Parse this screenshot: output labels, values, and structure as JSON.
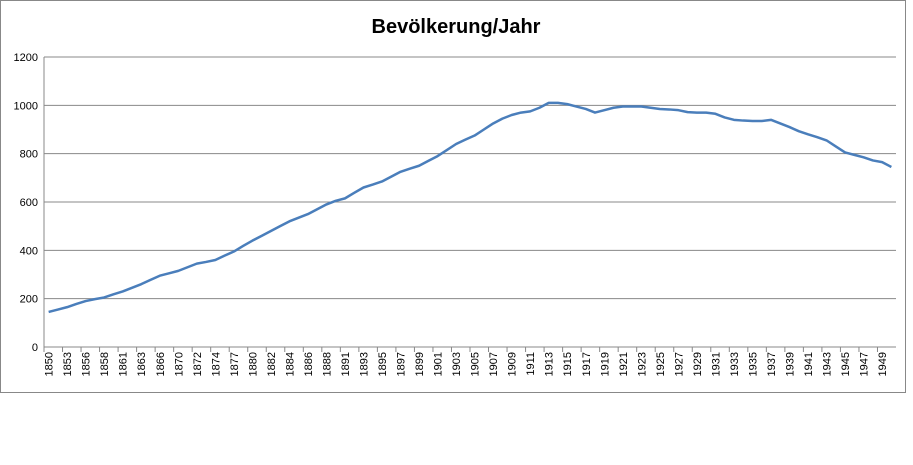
{
  "chart_data": {
    "type": "line",
    "title": "Bevölkerung/Jahr",
    "categories": [
      "1850",
      null,
      "1853",
      null,
      "1856",
      null,
      "1858",
      null,
      "1861",
      null,
      "1863",
      null,
      "1866",
      null,
      "1870",
      null,
      "1872",
      null,
      "1874",
      null,
      "1877",
      null,
      "1880",
      null,
      "1882",
      null,
      "1884",
      null,
      "1886",
      null,
      "1888",
      null,
      "1891",
      null,
      "1893",
      null,
      "1895",
      null,
      "1897",
      null,
      "1899",
      null,
      "1901",
      null,
      "1903",
      null,
      "1905",
      null,
      "1907",
      null,
      "1909",
      null,
      "1911",
      null,
      "1913",
      null,
      "1915",
      null,
      "1917",
      null,
      "1919",
      null,
      "1921",
      null,
      "1923",
      null,
      "1925",
      null,
      "1927",
      null,
      "1929",
      null,
      "1931",
      null,
      "1933",
      null,
      "1935",
      null,
      "1937",
      null,
      "1939",
      null,
      "1941",
      null,
      "1943",
      null,
      "1945",
      null,
      "1947",
      null,
      "1949",
      null
    ],
    "values": [
      145,
      155,
      165,
      178,
      190,
      198,
      205,
      218,
      230,
      245,
      260,
      278,
      295,
      305,
      315,
      330,
      345,
      352,
      360,
      378,
      395,
      418,
      440,
      460,
      480,
      500,
      520,
      535,
      550,
      570,
      590,
      605,
      615,
      638,
      660,
      672,
      685,
      705,
      725,
      738,
      750,
      770,
      790,
      815,
      840,
      858,
      875,
      900,
      925,
      945,
      960,
      970,
      975,
      990,
      1010,
      1010,
      1005,
      995,
      985,
      970,
      980,
      990,
      995,
      995,
      995,
      990,
      985,
      983,
      980,
      972,
      970,
      970,
      965,
      950,
      940,
      937,
      935,
      935,
      940,
      925,
      910,
      893,
      880,
      868,
      855,
      830,
      805,
      795,
      785,
      772,
      765,
      745
    ],
    "color": "#4a7ebb",
    "ylim": [
      0,
      1200
    ],
    "yticks": [
      0,
      200,
      400,
      600,
      800,
      1000,
      1200
    ],
    "grid": true
  }
}
